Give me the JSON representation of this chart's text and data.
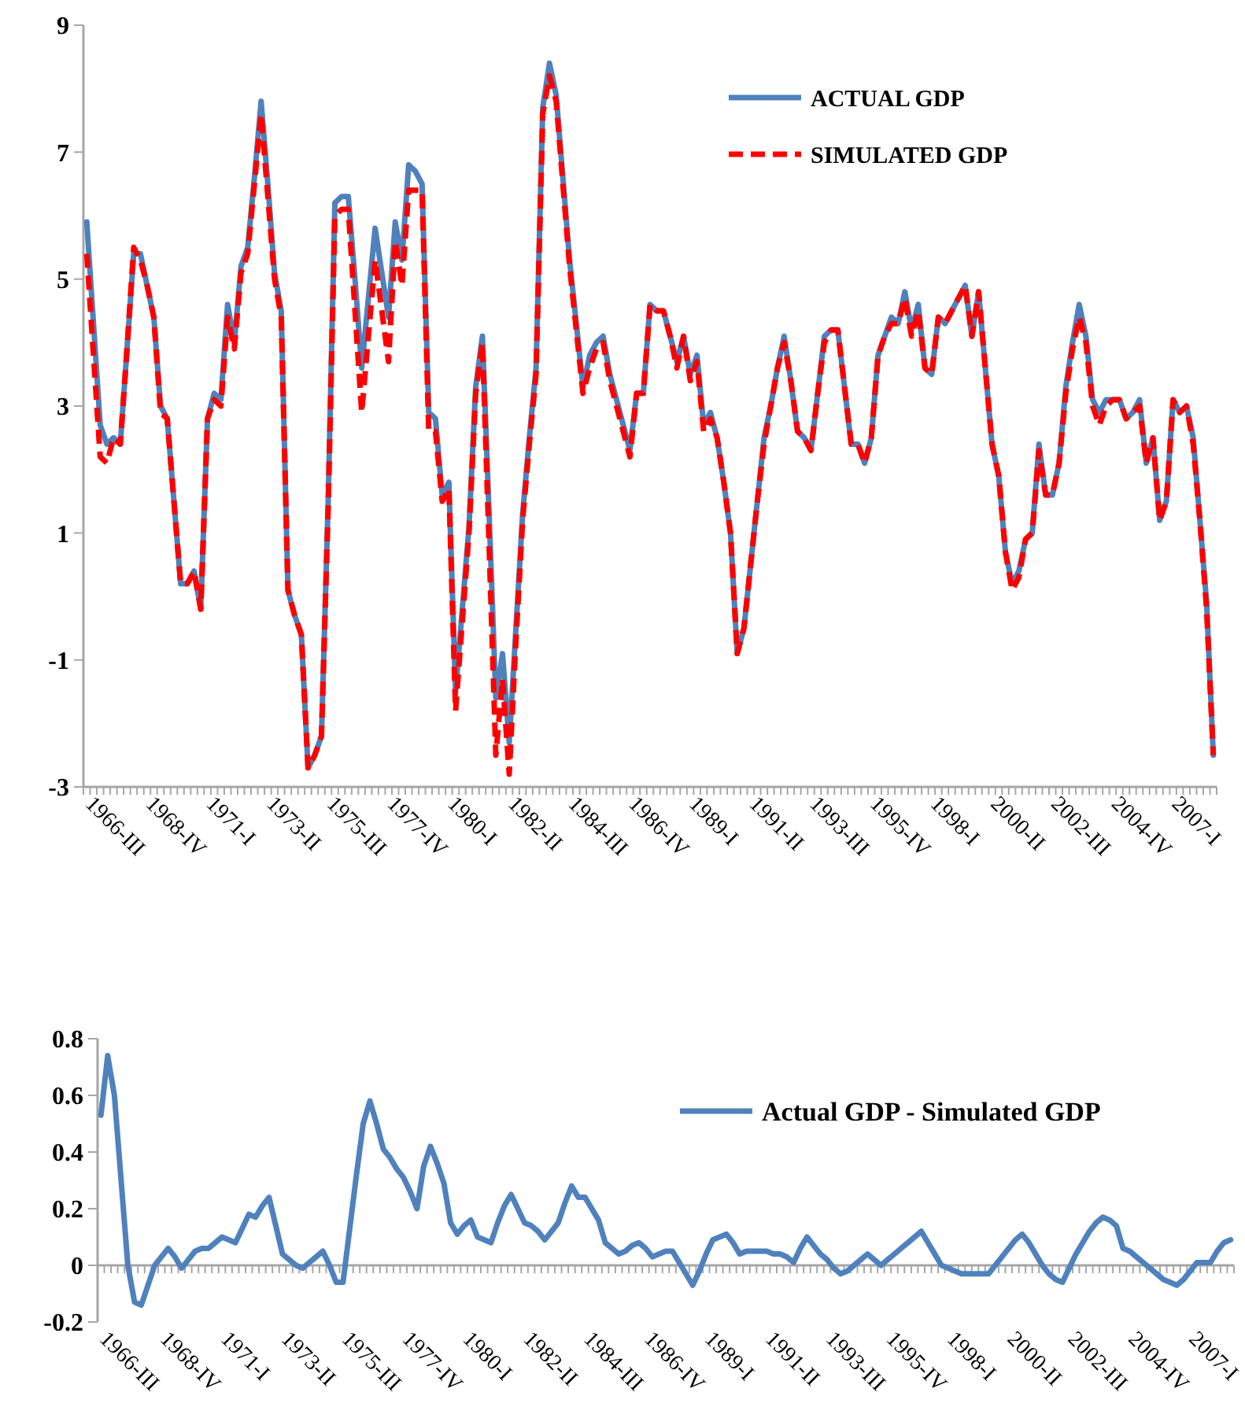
{
  "chart_data": [
    {
      "type": "line",
      "ylim": [
        -3,
        9
      ],
      "yticks": [
        -3,
        -1,
        1,
        3,
        5,
        7,
        9
      ],
      "categories": [
        "1966-III",
        null,
        null,
        null,
        null,
        null,
        null,
        null,
        null,
        "1968-IV",
        null,
        null,
        null,
        null,
        null,
        null,
        null,
        null,
        "1971-I",
        null,
        null,
        null,
        null,
        null,
        null,
        null,
        null,
        "1973-II",
        null,
        null,
        null,
        null,
        null,
        null,
        null,
        null,
        "1975-III",
        null,
        null,
        null,
        null,
        null,
        null,
        null,
        null,
        "1977-IV",
        null,
        null,
        null,
        null,
        null,
        null,
        null,
        null,
        "1980-I",
        null,
        null,
        null,
        null,
        null,
        null,
        null,
        null,
        "1982-II",
        null,
        null,
        null,
        null,
        null,
        null,
        null,
        null,
        "1984-III",
        null,
        null,
        null,
        null,
        null,
        null,
        null,
        null,
        "1986-IV",
        null,
        null,
        null,
        null,
        null,
        null,
        null,
        null,
        "1989-I",
        null,
        null,
        null,
        null,
        null,
        null,
        null,
        null,
        "1991-II",
        null,
        null,
        null,
        null,
        null,
        null,
        null,
        null,
        "1993-III",
        null,
        null,
        null,
        null,
        null,
        null,
        null,
        null,
        "1995-IV",
        null,
        null,
        null,
        null,
        null,
        null,
        null,
        null,
        "1998-I",
        null,
        null,
        null,
        null,
        null,
        null,
        null,
        null,
        "2000-II",
        null,
        null,
        null,
        null,
        null,
        null,
        null,
        null,
        "2002-III",
        null,
        null,
        null,
        null,
        null,
        null,
        null,
        null,
        "2004-IV",
        null,
        null,
        null,
        null,
        null,
        null,
        null,
        null,
        "2007-I",
        null,
        null,
        null,
        null,
        null,
        null
      ],
      "legend": "top right",
      "marker": "none",
      "series": [
        {
          "name": "ACTUAL GDP",
          "color": "#4f81bd",
          "line_style": "solid",
          "values": [
            5.9,
            4.3,
            2.7,
            2.4,
            2.5,
            2.4,
            3.9,
            5.4,
            5.4,
            4.9,
            4.4,
            3.0,
            2.8,
            1.5,
            0.2,
            0.2,
            0.4,
            -0.2,
            2.8,
            3.2,
            3.1,
            4.6,
            4.0,
            5.2,
            5.5,
            6.6,
            7.8,
            6.5,
            5.1,
            4.5,
            0.1,
            -0.3,
            -0.6,
            -2.7,
            -2.5,
            -2.2,
            1.5,
            6.2,
            6.3,
            6.3,
            5.0,
            3.6,
            4.7,
            5.8,
            5.1,
            4.4,
            5.9,
            5.3,
            6.8,
            6.7,
            6.5,
            2.9,
            2.8,
            1.6,
            1.8,
            -1.5,
            -0.2,
            1.1,
            3.3,
            4.1,
            1.3,
            -1.6,
            -0.9,
            -2.3,
            -0.5,
            1.3,
            2.5,
            3.6,
            7.7,
            8.4,
            7.9,
            6.6,
            5.3,
            4.3,
            3.3,
            3.8,
            4.0,
            4.1,
            3.5,
            3.1,
            2.7,
            2.3,
            3.2,
            3.2,
            4.6,
            4.5,
            4.5,
            4.1,
            3.7,
            4.1,
            3.5,
            3.8,
            2.7,
            2.9,
            2.5,
            1.8,
            1.0,
            -0.9,
            -0.5,
            0.5,
            1.5,
            2.5,
            3.0,
            3.6,
            4.1,
            3.4,
            2.6,
            2.5,
            2.3,
            3.2,
            4.1,
            4.2,
            4.2,
            3.3,
            2.4,
            2.4,
            2.1,
            2.5,
            3.8,
            4.1,
            4.4,
            4.3,
            4.8,
            4.2,
            4.6,
            3.6,
            3.5,
            4.4,
            4.3,
            4.5,
            4.7,
            4.9,
            4.1,
            4.8,
            3.6,
            2.4,
            1.9,
            0.7,
            0.2,
            0.4,
            0.9,
            1.0,
            2.4,
            1.6,
            1.6,
            2.1,
            3.3,
            4.0,
            4.6,
            4.1,
            3.1,
            2.9,
            3.1,
            3.1,
            3.1,
            2.8,
            2.9,
            3.1,
            2.1,
            2.5,
            1.2,
            1.5,
            3.1,
            2.9,
            3.0,
            2.5,
            1.2,
            -0.1,
            -2.5
          ]
        },
        {
          "name": "SIMULATED GDP",
          "color": "#ff0000",
          "line_style": "dashed",
          "values": [
            5.4,
            3.8,
            2.2,
            2.1,
            2.5,
            2.4,
            3.9,
            5.5,
            5.3,
            4.9,
            4.4,
            2.9,
            2.8,
            1.5,
            0.2,
            0.2,
            0.4,
            -0.2,
            2.8,
            3.1,
            3.0,
            4.4,
            3.9,
            5.1,
            5.4,
            6.5,
            7.6,
            6.3,
            5.0,
            4.4,
            0.1,
            -0.3,
            -0.6,
            -2.7,
            -2.5,
            -2.2,
            1.4,
            6.0,
            6.1,
            6.1,
            4.5,
            2.9,
            4.1,
            5.3,
            4.5,
            3.7,
            5.6,
            4.9,
            6.4,
            6.4,
            6.4,
            2.6,
            2.6,
            1.5,
            1.7,
            -1.8,
            -0.4,
            1.0,
            3.2,
            4.0,
            0.8,
            -2.5,
            -1.3,
            -2.8,
            -0.7,
            1.2,
            2.4,
            3.5,
            7.6,
            8.2,
            7.8,
            6.5,
            5.2,
            4.2,
            3.2,
            3.6,
            3.9,
            4.0,
            3.4,
            3.0,
            2.6,
            2.2,
            3.2,
            3.2,
            4.6,
            4.5,
            4.5,
            4.1,
            3.6,
            4.1,
            3.4,
            3.7,
            2.6,
            2.8,
            2.5,
            1.8,
            1.0,
            -0.9,
            -0.5,
            0.5,
            1.5,
            2.4,
            3.0,
            3.6,
            4.0,
            3.4,
            2.6,
            2.5,
            2.3,
            3.2,
            4.0,
            4.2,
            4.2,
            3.3,
            2.4,
            2.4,
            2.1,
            2.5,
            3.8,
            4.1,
            4.3,
            4.3,
            4.7,
            4.1,
            4.5,
            3.6,
            3.5,
            4.4,
            4.3,
            4.5,
            4.7,
            4.9,
            4.1,
            4.8,
            3.6,
            2.4,
            1.9,
            0.7,
            0.1,
            0.3,
            0.9,
            1.0,
            2.3,
            1.6,
            1.6,
            2.1,
            3.2,
            3.9,
            4.4,
            4.0,
            3.0,
            2.7,
            3.0,
            3.1,
            3.1,
            2.8,
            2.9,
            3.0,
            2.1,
            2.5,
            1.2,
            1.5,
            3.1,
            2.9,
            3.0,
            2.4,
            1.2,
            -0.2,
            -2.5
          ]
        }
      ]
    },
    {
      "type": "line",
      "ylim": [
        -0.2,
        0.8
      ],
      "yticks": [
        -0.2,
        0,
        0.2,
        0.4,
        0.6,
        0.8
      ],
      "categories": [
        "1966-III",
        null,
        null,
        null,
        null,
        null,
        null,
        null,
        null,
        "1968-IV",
        null,
        null,
        null,
        null,
        null,
        null,
        null,
        null,
        "1971-I",
        null,
        null,
        null,
        null,
        null,
        null,
        null,
        null,
        "1973-II",
        null,
        null,
        null,
        null,
        null,
        null,
        null,
        null,
        "1975-III",
        null,
        null,
        null,
        null,
        null,
        null,
        null,
        null,
        "1977-IV",
        null,
        null,
        null,
        null,
        null,
        null,
        null,
        null,
        "1980-I",
        null,
        null,
        null,
        null,
        null,
        null,
        null,
        null,
        "1982-II",
        null,
        null,
        null,
        null,
        null,
        null,
        null,
        null,
        "1984-III",
        null,
        null,
        null,
        null,
        null,
        null,
        null,
        null,
        "1986-IV",
        null,
        null,
        null,
        null,
        null,
        null,
        null,
        null,
        "1989-I",
        null,
        null,
        null,
        null,
        null,
        null,
        null,
        null,
        "1991-II",
        null,
        null,
        null,
        null,
        null,
        null,
        null,
        null,
        "1993-III",
        null,
        null,
        null,
        null,
        null,
        null,
        null,
        null,
        "1995-IV",
        null,
        null,
        null,
        null,
        null,
        null,
        null,
        null,
        "1998-I",
        null,
        null,
        null,
        null,
        null,
        null,
        null,
        null,
        "2000-II",
        null,
        null,
        null,
        null,
        null,
        null,
        null,
        null,
        "2002-III",
        null,
        null,
        null,
        null,
        null,
        null,
        null,
        null,
        "2004-IV",
        null,
        null,
        null,
        null,
        null,
        null,
        null,
        null,
        "2007-I",
        null,
        null,
        null,
        null,
        null,
        null
      ],
      "legend": "top right",
      "marker": "none",
      "ref_lines": [
        {
          "axis": "y",
          "value": 0,
          "color": "#a6a6a6"
        }
      ],
      "series": [
        {
          "name": "Actual GDP - Simulated GDP",
          "color": "#4f81bd",
          "line_style": "solid",
          "values": [
            0.53,
            0.74,
            0.6,
            0.3,
            0,
            -0.13,
            -0.14,
            -0.07,
            0,
            0.03,
            0.06,
            0.03,
            -0.01,
            0.02,
            0.05,
            0.06,
            0.06,
            0.08,
            0.1,
            0.09,
            0.08,
            0.13,
            0.18,
            0.17,
            0.21,
            0.24,
            0.14,
            0.04,
            0.02,
            0,
            -0.01,
            0.01,
            0.03,
            0.05,
            0,
            -0.06,
            -0.06,
            0.13,
            0.32,
            0.5,
            0.58,
            0.5,
            0.41,
            0.38,
            0.34,
            0.31,
            0.26,
            0.2,
            0.35,
            0.42,
            0.36,
            0.29,
            0.15,
            0.11,
            0.14,
            0.16,
            0.1,
            0.09,
            0.08,
            0.15,
            0.21,
            0.25,
            0.2,
            0.15,
            0.14,
            0.12,
            0.09,
            0.12,
            0.15,
            0.22,
            0.28,
            0.24,
            0.24,
            0.2,
            0.16,
            0.08,
            0.06,
            0.04,
            0.05,
            0.07,
            0.08,
            0.06,
            0.03,
            0.04,
            0.05,
            0.05,
            0.01,
            -0.03,
            -0.07,
            -0.02,
            0.04,
            0.09,
            0.1,
            0.11,
            0.08,
            0.04,
            0.05,
            0.05,
            0.05,
            0.05,
            0.04,
            0.04,
            0.03,
            0.01,
            0.06,
            0.1,
            0.07,
            0.04,
            0.02,
            -0.01,
            -0.03,
            -0.02,
            0,
            0.02,
            0.04,
            0.02,
            0,
            0.02,
            0.04,
            0.06,
            0.08,
            0.1,
            0.12,
            0.08,
            0.04,
            0,
            -0.01,
            -0.02,
            -0.03,
            -0.03,
            -0.03,
            -0.03,
            -0.03,
            0,
            0.03,
            0.06,
            0.09,
            0.11,
            0.08,
            0.04,
            0,
            -0.03,
            -0.05,
            -0.06,
            -0.01,
            0.04,
            0.08,
            0.12,
            0.15,
            0.17,
            0.16,
            0.14,
            0.06,
            0.05,
            0.03,
            0.01,
            -0.01,
            -0.03,
            -0.05,
            -0.06,
            -0.07,
            -0.05,
            -0.02,
            0.01,
            0.01,
            0.01,
            0.05,
            0.08,
            0.09
          ]
        }
      ]
    }
  ]
}
